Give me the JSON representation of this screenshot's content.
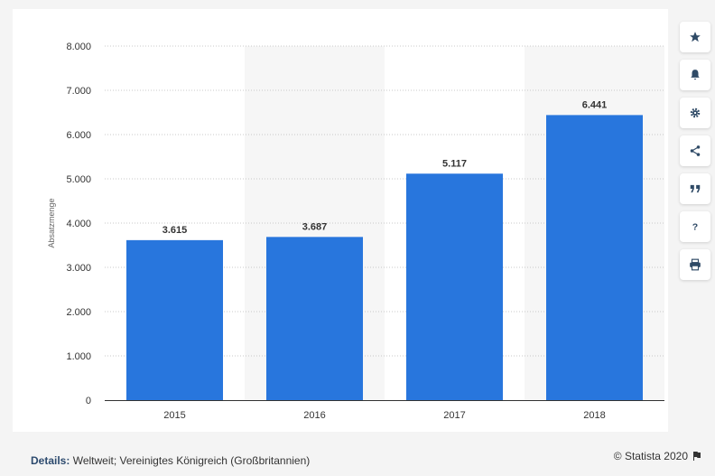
{
  "chart_data": {
    "type": "bar",
    "categories": [
      "2015",
      "2016",
      "2017",
      "2018"
    ],
    "values": [
      3615,
      3687,
      5117,
      6441
    ],
    "value_labels": [
      "3.615",
      "3.687",
      "5.117",
      "6.441"
    ],
    "ylabel": "Absatzmenge",
    "xlabel": "",
    "ylim": [
      0,
      8000
    ],
    "yticks": [
      0,
      1000,
      2000,
      3000,
      4000,
      5000,
      6000,
      7000,
      8000
    ],
    "ytick_labels": [
      "0",
      "1.000",
      "2.000",
      "3.000",
      "4.000",
      "5.000",
      "6.000",
      "7.000",
      "8.000"
    ],
    "grid": true,
    "bar_color": "#2876dd",
    "band_color": "#f6f6f6"
  },
  "footer": {
    "details_label": "Details:",
    "details_text": "Weltweit; Vereinigtes Königreich (Großbritannien)",
    "credit": "© Statista 2020"
  },
  "sidebar": {
    "icons": [
      "star-icon",
      "bell-icon",
      "gear-icon",
      "share-icon",
      "quote-icon",
      "help-icon",
      "print-icon"
    ],
    "help_glyph": "?"
  }
}
